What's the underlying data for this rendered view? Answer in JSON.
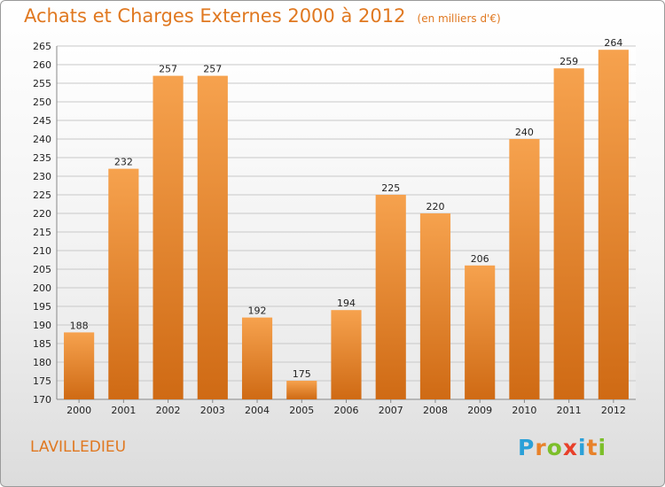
{
  "chart_data": {
    "type": "bar",
    "title": "Achats et Charges Externes 2000 à 2012",
    "unit": "(en milliers d'€)",
    "categories": [
      "2000",
      "2001",
      "2002",
      "2003",
      "2004",
      "2005",
      "2006",
      "2007",
      "2008",
      "2009",
      "2010",
      "2011",
      "2012"
    ],
    "values": [
      188,
      232,
      257,
      257,
      192,
      175,
      194,
      225,
      220,
      206,
      240,
      259,
      264
    ],
    "ylim": [
      170,
      265
    ],
    "yticks": [
      170,
      175,
      180,
      185,
      190,
      195,
      200,
      205,
      210,
      215,
      220,
      225,
      230,
      235,
      240,
      245,
      250,
      255,
      260,
      265
    ],
    "grid": true,
    "legend": "none",
    "bar_color": "#e8822a"
  },
  "commune": "LAVILLEDIEU",
  "logo": {
    "text": "Proxiti",
    "letters": [
      {
        "ch": "P",
        "color": "#2aa0d8"
      },
      {
        "ch": "r",
        "color": "#e8822a"
      },
      {
        "ch": "o",
        "color": "#7cbf2a"
      },
      {
        "ch": "x",
        "color": "#e8402a"
      },
      {
        "ch": "i",
        "color": "#2aa0d8"
      },
      {
        "ch": "t",
        "color": "#e8822a"
      },
      {
        "ch": "i",
        "color": "#7cbf2a"
      }
    ]
  }
}
